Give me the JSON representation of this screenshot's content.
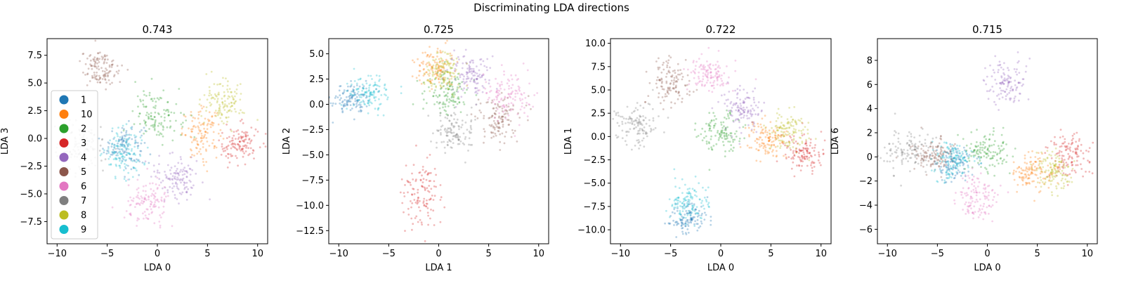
{
  "figure": {
    "suptitle": "Discriminating LDA directions"
  },
  "legend": {
    "placement": "left",
    "labels": [
      "1",
      "10",
      "2",
      "3",
      "4",
      "5",
      "6",
      "7",
      "8",
      "9"
    ]
  },
  "colors": {
    "1": "#1f77b4",
    "10": "#ff7f0e",
    "2": "#2ca02c",
    "3": "#d62728",
    "4": "#9467bd",
    "5": "#8c564b",
    "6": "#e377c2",
    "7": "#7f7f7f",
    "8": "#bcbd22",
    "9": "#17becf"
  },
  "chart_data": [
    {
      "type": "scatter",
      "title": "0.743",
      "xlabel": "LDA 0",
      "ylabel": "LDA 3",
      "xlim": [
        -11,
        11
      ],
      "ylim": [
        -9.5,
        9
      ],
      "xticks": [
        -10,
        -5,
        0,
        5,
        10
      ],
      "yticks": [
        -7.5,
        -5.0,
        -2.5,
        0.0,
        2.5,
        5.0,
        7.5
      ],
      "ytick_labels": [
        "−7.5",
        "−5.0",
        "−2.5",
        "0.0",
        "2.5",
        "5.0",
        "7.5"
      ],
      "xtick_labels": [
        "−10",
        "−5",
        "0",
        "5",
        "10"
      ],
      "clusters": [
        {
          "name": "1",
          "x": -3.3,
          "y": -0.6,
          "sx": 1.0,
          "sy": 1.0
        },
        {
          "name": "10",
          "x": 4.5,
          "y": 0.4,
          "sx": 1.0,
          "sy": 1.1
        },
        {
          "name": "2",
          "x": 0.1,
          "y": 2.1,
          "sx": 1.2,
          "sy": 1.1
        },
        {
          "name": "3",
          "x": 8.1,
          "y": -0.6,
          "sx": 1.0,
          "sy": 0.9
        },
        {
          "name": "4",
          "x": 2.0,
          "y": -3.4,
          "sx": 1.1,
          "sy": 1.0
        },
        {
          "name": "5",
          "x": -5.6,
          "y": 6.3,
          "sx": 1.0,
          "sy": 0.9
        },
        {
          "name": "6",
          "x": -1.0,
          "y": -5.9,
          "sx": 1.1,
          "sy": 1.0
        },
        {
          "name": "7",
          "x": -7.6,
          "y": -1.0,
          "sx": 1.3,
          "sy": 1.1
        },
        {
          "name": "8",
          "x": 6.6,
          "y": 3.4,
          "sx": 1.0,
          "sy": 1.0
        },
        {
          "name": "9",
          "x": -3.4,
          "y": -1.2,
          "sx": 1.0,
          "sy": 1.1
        }
      ]
    },
    {
      "type": "scatter",
      "title": "0.725",
      "xlabel": "LDA 1",
      "ylabel": "LDA 2",
      "xlim": [
        -11,
        11
      ],
      "ylim": [
        -13.8,
        6.5
      ],
      "xticks": [
        -10,
        -5,
        0,
        5,
        10
      ],
      "yticks": [
        -12.5,
        -10.0,
        -7.5,
        -5.0,
        -2.5,
        0.0,
        2.5,
        5.0
      ],
      "ytick_labels": [
        "−12.5",
        "−10.0",
        "−7.5",
        "−5.0",
        "−2.5",
        "0.0",
        "2.5",
        "5.0"
      ],
      "xtick_labels": [
        "−10",
        "−5",
        "0",
        "5",
        "10"
      ],
      "clusters": [
        {
          "name": "1",
          "x": -8.8,
          "y": 0.6,
          "sx": 1.0,
          "sy": 0.8
        },
        {
          "name": "10",
          "x": -0.4,
          "y": 3.6,
          "sx": 1.0,
          "sy": 1.0
        },
        {
          "name": "2",
          "x": 0.8,
          "y": 1.2,
          "sx": 1.1,
          "sy": 1.2
        },
        {
          "name": "3",
          "x": -1.8,
          "y": -8.8,
          "sx": 1.0,
          "sy": 1.5
        },
        {
          "name": "4",
          "x": 3.0,
          "y": 2.9,
          "sx": 1.1,
          "sy": 1.0
        },
        {
          "name": "5",
          "x": 6.0,
          "y": -1.5,
          "sx": 1.1,
          "sy": 1.1
        },
        {
          "name": "6",
          "x": 6.8,
          "y": 0.9,
          "sx": 1.2,
          "sy": 1.1
        },
        {
          "name": "7",
          "x": 1.6,
          "y": -2.8,
          "sx": 1.1,
          "sy": 1.1
        },
        {
          "name": "8",
          "x": 0.5,
          "y": 3.1,
          "sx": 1.0,
          "sy": 1.0
        },
        {
          "name": "9",
          "x": -6.8,
          "y": 1.1,
          "sx": 1.1,
          "sy": 0.9
        }
      ]
    },
    {
      "type": "scatter",
      "title": "0.722",
      "xlabel": "LDA 0",
      "ylabel": "LDA 1",
      "xlim": [
        -11,
        11
      ],
      "ylim": [
        -11.5,
        10.5
      ],
      "xticks": [
        -10,
        -5,
        0,
        5,
        10
      ],
      "yticks": [
        -10.0,
        -7.5,
        -5.0,
        -2.5,
        0.0,
        2.5,
        5.0,
        7.5,
        10.0
      ],
      "ytick_labels": [
        "−10.0",
        "−7.5",
        "−5.0",
        "−2.5",
        "0.0",
        "2.5",
        "5.0",
        "7.5",
        "10.0"
      ],
      "xtick_labels": [
        "−10",
        "−5",
        "0",
        "5",
        "10"
      ],
      "clusters": [
        {
          "name": "1",
          "x": -3.2,
          "y": -8.8,
          "sx": 1.0,
          "sy": 0.9
        },
        {
          "name": "10",
          "x": 4.6,
          "y": -0.4,
          "sx": 1.0,
          "sy": 1.0
        },
        {
          "name": "2",
          "x": 0.0,
          "y": 0.4,
          "sx": 1.1,
          "sy": 1.2
        },
        {
          "name": "3",
          "x": 8.2,
          "y": -1.8,
          "sx": 1.0,
          "sy": 1.0
        },
        {
          "name": "4",
          "x": 2.0,
          "y": 3.0,
          "sx": 1.0,
          "sy": 1.1
        },
        {
          "name": "5",
          "x": -5.2,
          "y": 5.8,
          "sx": 1.0,
          "sy": 1.2
        },
        {
          "name": "6",
          "x": -1.0,
          "y": 6.6,
          "sx": 1.1,
          "sy": 1.1
        },
        {
          "name": "7",
          "x": -8.3,
          "y": 1.4,
          "sx": 1.1,
          "sy": 1.1
        },
        {
          "name": "8",
          "x": 6.6,
          "y": 0.6,
          "sx": 1.0,
          "sy": 1.0
        },
        {
          "name": "9",
          "x": -3.3,
          "y": -7.0,
          "sx": 1.0,
          "sy": 1.1
        }
      ]
    },
    {
      "type": "scatter",
      "title": "0.715",
      "xlabel": "LDA 0",
      "ylabel": "LDA 6",
      "xlim": [
        -11,
        11
      ],
      "ylim": [
        -7.2,
        9.8
      ],
      "xticks": [
        -10,
        -5,
        0,
        5,
        10
      ],
      "yticks": [
        -6,
        -4,
        -2,
        0,
        2,
        4,
        6,
        8
      ],
      "ytick_labels": [
        "−6",
        "−4",
        "−2",
        "0",
        "2",
        "4",
        "6",
        "8"
      ],
      "xtick_labels": [
        "−10",
        "−5",
        "0",
        "5",
        "10"
      ],
      "clusters": [
        {
          "name": "1",
          "x": -3.4,
          "y": -0.6,
          "sx": 1.0,
          "sy": 0.8
        },
        {
          "name": "10",
          "x": 4.6,
          "y": -1.3,
          "sx": 1.0,
          "sy": 0.7
        },
        {
          "name": "2",
          "x": 0.0,
          "y": 0.4,
          "sx": 1.2,
          "sy": 0.9
        },
        {
          "name": "3",
          "x": 8.2,
          "y": 0.1,
          "sx": 1.0,
          "sy": 0.9
        },
        {
          "name": "4",
          "x": 1.9,
          "y": 6.0,
          "sx": 1.0,
          "sy": 1.0
        },
        {
          "name": "5",
          "x": -5.6,
          "y": 0.2,
          "sx": 1.1,
          "sy": 0.7
        },
        {
          "name": "6",
          "x": -1.0,
          "y": -3.6,
          "sx": 1.1,
          "sy": 1.0
        },
        {
          "name": "7",
          "x": -8.3,
          "y": 0.6,
          "sx": 1.4,
          "sy": 0.8
        },
        {
          "name": "8",
          "x": 6.6,
          "y": -1.2,
          "sx": 1.0,
          "sy": 0.9
        },
        {
          "name": "9",
          "x": -3.4,
          "y": -0.3,
          "sx": 1.0,
          "sy": 0.8
        }
      ]
    }
  ]
}
